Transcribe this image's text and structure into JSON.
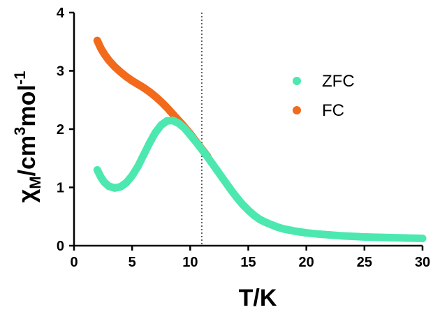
{
  "chart_data": {
    "type": "scatter",
    "xlabel": "T/K",
    "ylabel_parts": {
      "chi": "χ",
      "sub": "M",
      "unit1": "/cm",
      "sup1": "3",
      "unit2": "mol",
      "sup2": "-1"
    },
    "xlim": [
      0,
      30
    ],
    "ylim": [
      0,
      4
    ],
    "xticks": [
      0,
      5,
      10,
      15,
      20,
      25,
      30
    ],
    "yticks": [
      0,
      1,
      2,
      3,
      4
    ],
    "grid": false,
    "legend_position": "right",
    "vline_x": 11,
    "colors": {
      "ZFC": "#4de8b0",
      "FC": "#f26a1b",
      "axis": "#000000",
      "vline": "#000000"
    },
    "series": [
      {
        "name": "ZFC",
        "points": [
          [
            2.0,
            1.3
          ],
          [
            2.3,
            1.18
          ],
          [
            2.6,
            1.09
          ],
          [
            3.0,
            1.02
          ],
          [
            3.5,
            0.99
          ],
          [
            4.0,
            1.01
          ],
          [
            4.5,
            1.08
          ],
          [
            5.0,
            1.2
          ],
          [
            5.5,
            1.36
          ],
          [
            6.0,
            1.56
          ],
          [
            6.5,
            1.76
          ],
          [
            7.0,
            1.94
          ],
          [
            7.5,
            2.07
          ],
          [
            8.0,
            2.14
          ],
          [
            8.5,
            2.15
          ],
          [
            9.0,
            2.1
          ],
          [
            9.5,
            2.02
          ],
          [
            10.0,
            1.9
          ],
          [
            10.5,
            1.78
          ],
          [
            11.0,
            1.65
          ],
          [
            11.5,
            1.52
          ],
          [
            12.0,
            1.38
          ],
          [
            12.5,
            1.24
          ],
          [
            13.0,
            1.1
          ],
          [
            13.5,
            0.96
          ],
          [
            14.0,
            0.83
          ],
          [
            14.5,
            0.71
          ],
          [
            15.0,
            0.61
          ],
          [
            15.5,
            0.52
          ],
          [
            16.0,
            0.45
          ],
          [
            16.5,
            0.4
          ],
          [
            17.0,
            0.36
          ],
          [
            17.5,
            0.32
          ],
          [
            18.0,
            0.29
          ],
          [
            18.5,
            0.27
          ],
          [
            19.0,
            0.25
          ],
          [
            19.5,
            0.235
          ],
          [
            20.0,
            0.22
          ],
          [
            21.0,
            0.2
          ],
          [
            22.0,
            0.185
          ],
          [
            23.0,
            0.17
          ],
          [
            24.0,
            0.16
          ],
          [
            25.0,
            0.15
          ],
          [
            26.0,
            0.145
          ],
          [
            27.0,
            0.14
          ],
          [
            28.0,
            0.135
          ],
          [
            29.0,
            0.13
          ],
          [
            30.0,
            0.125
          ]
        ]
      },
      {
        "name": "FC",
        "points": [
          [
            2.0,
            3.52
          ],
          [
            2.3,
            3.39
          ],
          [
            2.6,
            3.29
          ],
          [
            3.0,
            3.18
          ],
          [
            3.5,
            3.07
          ],
          [
            4.0,
            2.98
          ],
          [
            4.5,
            2.9
          ],
          [
            5.0,
            2.83
          ],
          [
            5.5,
            2.77
          ],
          [
            6.0,
            2.71
          ],
          [
            6.5,
            2.64
          ],
          [
            7.0,
            2.56
          ],
          [
            7.5,
            2.47
          ],
          [
            8.0,
            2.37
          ],
          [
            8.5,
            2.26
          ],
          [
            9.0,
            2.15
          ],
          [
            9.5,
            2.04
          ],
          [
            10.0,
            1.92
          ],
          [
            10.5,
            1.79
          ],
          [
            11.0,
            1.66
          ],
          [
            11.5,
            1.53
          ]
        ]
      }
    ]
  }
}
